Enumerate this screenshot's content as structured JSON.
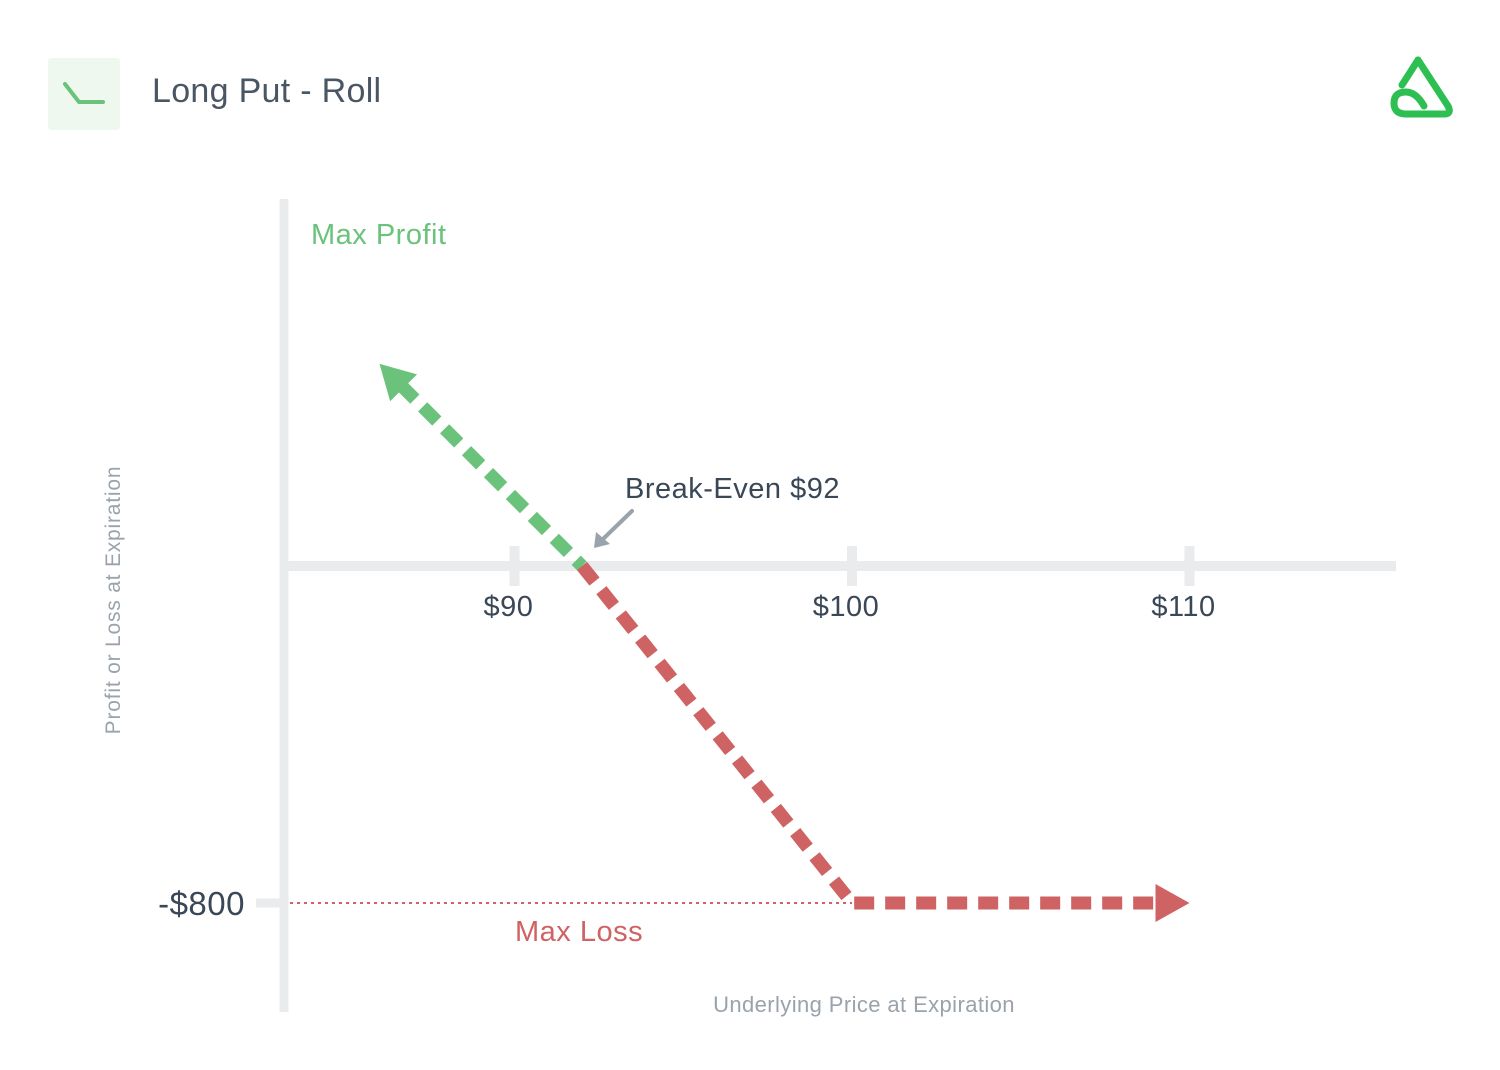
{
  "header": {
    "title": "Long Put - Roll",
    "badge_icon": "long-put-payoff-icon",
    "logo_icon": "brand-logo-icon"
  },
  "colors": {
    "profit": "#6ac27b",
    "loss": "#cf6364",
    "axis": "#eaebed",
    "text_dark": "#3a4756",
    "text_muted": "#9aa2ab",
    "logo": "#2dbf52"
  },
  "chart_data": {
    "type": "line",
    "title": "Long Put - Roll",
    "xlabel": "Underlying Price at Expiration",
    "ylabel": "Profit or Loss at Expiration",
    "x_ticks": [
      90,
      100,
      110
    ],
    "x_tick_labels": [
      "$90",
      "$100",
      "$110"
    ],
    "y_ticks": [
      -800
    ],
    "y_tick_labels": [
      "-$800"
    ],
    "series": [
      {
        "points": [
          [
            86,
            480
          ],
          [
            92,
            0
          ],
          [
            100,
            -800
          ],
          [
            110,
            -800
          ]
        ],
        "style": "dashed",
        "arrow_both_ends": true
      }
    ],
    "break_even": 92,
    "max_loss": -800,
    "annotations": {
      "max_profit": "Max Profit",
      "max_loss": "Max Loss",
      "break_even": "Break-Even $92"
    },
    "grid": false,
    "legend": "none"
  }
}
